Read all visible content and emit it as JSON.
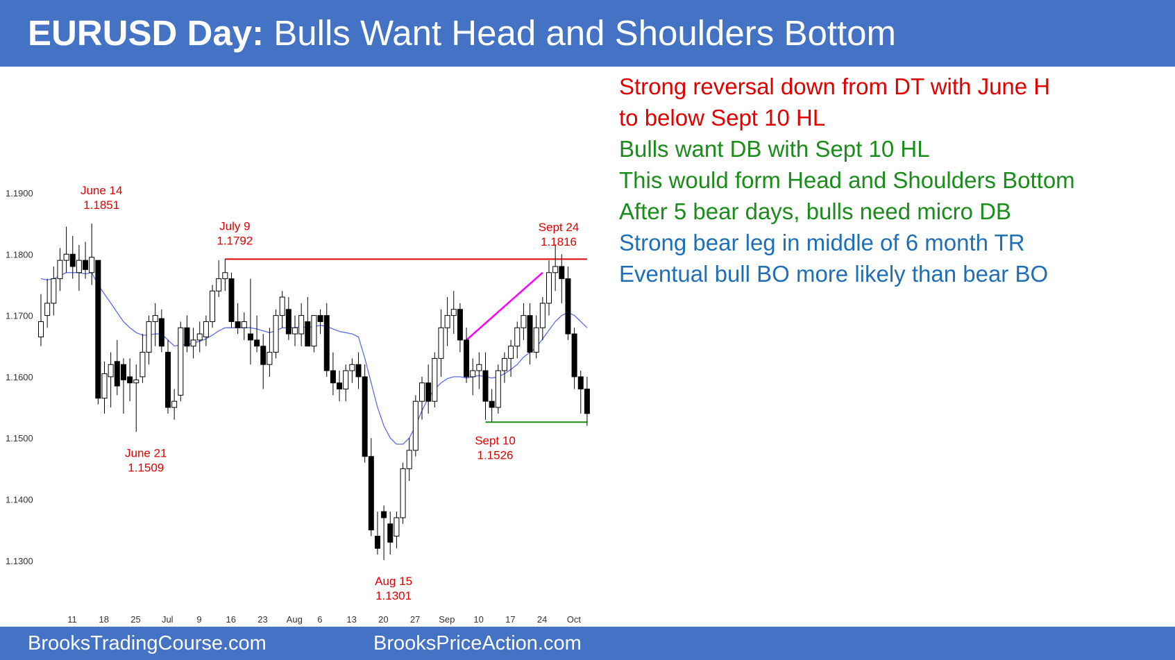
{
  "header": {
    "title_bold": "EURUSD Day:",
    "title_rest": " Bulls Want Head and Shoulders Bottom"
  },
  "footer": {
    "left_link": "BrooksTradingCourse.com",
    "right_link": "BrooksPriceAction.com"
  },
  "notes": [
    {
      "text": "Strong reversal down from DT with June H",
      "color": "#e00000"
    },
    {
      "text": "to below Sept 10 HL",
      "color": "#e00000"
    },
    {
      "text": "Bulls want DB with Sept 10 HL",
      "color": "#1a8c1a"
    },
    {
      "text": "This would form Head and Shoulders Bottom",
      "color": "#1a8c1a"
    },
    {
      "text": "After 5 bear days, bulls need micro DB",
      "color": "#1a8c1a"
    },
    {
      "text": "Strong bear leg in middle of 6 month TR",
      "color": "#1f6fb6"
    },
    {
      "text": "Eventual bull BO more likely than bear BO",
      "color": "#1f6fb6"
    }
  ],
  "chart_data": {
    "type": "candlestick",
    "title": "",
    "ylim": [
      1.125,
      1.197
    ],
    "y_ticks": [
      "1.1300",
      "1.1400",
      "1.1500",
      "1.1600",
      "1.1700",
      "1.1800",
      "1.1900"
    ],
    "x_ticks": [
      "11",
      "18",
      "25",
      "Jul",
      "9",
      "16",
      "23",
      "Aug",
      "6",
      "13",
      "20",
      "27",
      "Sep",
      "10",
      "17",
      "24",
      "Oct"
    ],
    "x_tick_index": [
      0,
      5,
      10,
      15,
      20,
      25,
      30,
      35,
      39,
      44,
      49,
      54,
      59,
      64,
      69,
      74,
      79
    ],
    "candles": [
      [
        1.1665,
        1.1735,
        1.165,
        1.169
      ],
      [
        1.17,
        1.176,
        1.168,
        1.172
      ],
      [
        1.172,
        1.178,
        1.17,
        1.176
      ],
      [
        1.176,
        1.181,
        1.174,
        1.179
      ],
      [
        1.179,
        1.1845,
        1.177,
        1.18
      ],
      [
        1.18,
        1.183,
        1.176,
        1.178
      ],
      [
        1.177,
        1.1815,
        1.174,
        1.179
      ],
      [
        1.179,
        1.182,
        1.176,
        1.1775
      ],
      [
        1.177,
        1.185,
        1.175,
        1.1795
      ],
      [
        1.179,
        1.179,
        1.1555,
        1.1565
      ],
      [
        1.1565,
        1.1625,
        1.154,
        1.1605
      ],
      [
        1.16,
        1.164,
        1.155,
        1.162
      ],
      [
        1.1625,
        1.166,
        1.157,
        1.1585
      ],
      [
        1.162,
        1.163,
        1.154,
        1.1595
      ],
      [
        1.16,
        1.163,
        1.156,
        1.159
      ],
      [
        1.159,
        1.162,
        1.151,
        1.1595
      ],
      [
        1.16,
        1.167,
        1.159,
        1.164
      ],
      [
        1.164,
        1.17,
        1.162,
        1.169
      ],
      [
        1.169,
        1.172,
        1.165,
        1.17
      ],
      [
        1.1695,
        1.171,
        1.164,
        1.165
      ],
      [
        1.164,
        1.166,
        1.154,
        1.155
      ],
      [
        1.155,
        1.158,
        1.153,
        1.156
      ],
      [
        1.157,
        1.169,
        1.156,
        1.168
      ],
      [
        1.168,
        1.17,
        1.164,
        1.165
      ],
      [
        1.165,
        1.168,
        1.163,
        1.166
      ],
      [
        1.166,
        1.169,
        1.164,
        1.167
      ],
      [
        1.1665,
        1.17,
        1.165,
        1.169
      ],
      [
        1.169,
        1.175,
        1.168,
        1.174
      ],
      [
        1.174,
        1.179,
        1.173,
        1.176
      ],
      [
        1.176,
        1.1792,
        1.174,
        1.177
      ],
      [
        1.176,
        1.177,
        1.168,
        1.169
      ],
      [
        1.169,
        1.172,
        1.167,
        1.168
      ],
      [
        1.168,
        1.1705,
        1.166,
        1.169
      ],
      [
        1.167,
        1.176,
        1.162,
        1.166
      ],
      [
        1.166,
        1.17,
        1.164,
        1.165
      ],
      [
        1.165,
        1.167,
        1.158,
        1.162
      ],
      [
        1.162,
        1.168,
        1.16,
        1.164
      ],
      [
        1.164,
        1.171,
        1.163,
        1.17
      ],
      [
        1.17,
        1.174,
        1.168,
        1.173
      ],
      [
        1.171,
        1.173,
        1.166,
        1.167
      ],
      [
        1.167,
        1.17,
        1.165,
        1.168
      ],
      [
        1.167,
        1.172,
        1.165,
        1.17
      ],
      [
        1.169,
        1.173,
        1.165,
        1.165
      ],
      [
        1.165,
        1.17,
        1.164,
        1.17
      ],
      [
        1.17,
        1.171,
        1.167,
        1.169
      ],
      [
        1.17,
        1.172,
        1.16,
        1.161
      ],
      [
        1.161,
        1.164,
        1.157,
        1.159
      ],
      [
        1.159,
        1.161,
        1.156,
        1.158
      ],
      [
        1.158,
        1.162,
        1.156,
        1.161
      ],
      [
        1.161,
        1.163,
        1.159,
        1.162
      ],
      [
        1.162,
        1.164,
        1.158,
        1.16
      ],
      [
        1.16,
        1.162,
        1.146,
        1.147
      ],
      [
        1.147,
        1.15,
        1.134,
        1.135
      ],
      [
        1.134,
        1.138,
        1.131,
        1.132
      ],
      [
        1.138,
        1.139,
        1.1301,
        1.137
      ],
      [
        1.136,
        1.138,
        1.131,
        1.133
      ],
      [
        1.134,
        1.138,
        1.132,
        1.137
      ],
      [
        1.137,
        1.146,
        1.136,
        1.145
      ],
      [
        1.145,
        1.15,
        1.143,
        1.148
      ],
      [
        1.148,
        1.157,
        1.147,
        1.156
      ],
      [
        1.156,
        1.16,
        1.153,
        1.159
      ],
      [
        1.159,
        1.162,
        1.154,
        1.156
      ],
      [
        1.156,
        1.164,
        1.155,
        1.163
      ],
      [
        1.163,
        1.171,
        1.16,
        1.168
      ],
      [
        1.168,
        1.173,
        1.165,
        1.17
      ],
      [
        1.17,
        1.174,
        1.167,
        1.171
      ],
      [
        1.171,
        1.172,
        1.164,
        1.166
      ],
      [
        1.166,
        1.168,
        1.159,
        1.16
      ],
      [
        1.16,
        1.163,
        1.157,
        1.161
      ],
      [
        1.161,
        1.164,
        1.158,
        1.162
      ],
      [
        1.161,
        1.164,
        1.153,
        1.156
      ],
      [
        1.156,
        1.158,
        1.1526,
        1.155
      ],
      [
        1.155,
        1.162,
        1.154,
        1.161
      ],
      [
        1.161,
        1.164,
        1.159,
        1.163
      ],
      [
        1.163,
        1.166,
        1.16,
        1.165
      ],
      [
        1.165,
        1.169,
        1.163,
        1.168
      ],
      [
        1.168,
        1.172,
        1.166,
        1.17
      ],
      [
        1.17,
        1.172,
        1.162,
        1.164
      ],
      [
        1.164,
        1.17,
        1.163,
        1.168
      ],
      [
        1.168,
        1.173,
        1.166,
        1.172
      ],
      [
        1.172,
        1.179,
        1.17,
        1.177
      ],
      [
        1.177,
        1.1816,
        1.174,
        1.178
      ],
      [
        1.178,
        1.18,
        1.172,
        1.176
      ],
      [
        1.176,
        1.178,
        1.166,
        1.167
      ],
      [
        1.167,
        1.168,
        1.158,
        1.16
      ],
      [
        1.16,
        1.161,
        1.154,
        1.158
      ],
      [
        1.158,
        1.16,
        1.152,
        1.154
      ]
    ],
    "ema": [
      1.176,
      1.1758,
      1.176,
      1.1765,
      1.177,
      1.177,
      1.177,
      1.1768,
      1.177,
      1.175,
      1.1735,
      1.172,
      1.1705,
      1.169,
      1.168,
      1.1672,
      1.1668,
      1.1668,
      1.167,
      1.167,
      1.166,
      1.165,
      1.1652,
      1.1652,
      1.1655,
      1.1658,
      1.1662,
      1.1668,
      1.1675,
      1.168,
      1.168,
      1.168,
      1.168,
      1.168,
      1.1678,
      1.1675,
      1.1672,
      1.1675,
      1.168,
      1.168,
      1.168,
      1.1682,
      1.168,
      1.1682,
      1.1684,
      1.1682,
      1.1678,
      1.1674,
      1.1672,
      1.167,
      1.1665,
      1.163,
      1.159,
      1.155,
      1.152,
      1.15,
      1.149,
      1.149,
      1.15,
      1.152,
      1.1545,
      1.1565,
      1.158,
      1.159,
      1.1597,
      1.16,
      1.16,
      1.1598,
      1.16,
      1.1602,
      1.16,
      1.1598,
      1.16,
      1.1605,
      1.1612,
      1.162,
      1.1632,
      1.164,
      1.1648,
      1.1662,
      1.1676,
      1.169,
      1.17,
      1.1705,
      1.17,
      1.169,
      1.168
    ],
    "lines": [
      {
        "name": "resistance",
        "color": "#e00000",
        "y": 1.1792,
        "x_from": 29,
        "x_to": 86
      },
      {
        "name": "support",
        "color": "#1a8c1a",
        "y": 1.1526,
        "x_from": 70,
        "x_to": 86
      },
      {
        "name": "trend",
        "color": "#ff00ff",
        "points": [
          [
            67,
            1.166
          ],
          [
            79,
            1.177
          ]
        ]
      }
    ],
    "annotations": [
      {
        "label": "June 14",
        "value": "1.1851",
        "color": "#e00000",
        "i": 8,
        "pos": "above"
      },
      {
        "label": "July 9",
        "value": "1.1792",
        "color": "#e00000",
        "i": 29,
        "pos": "above"
      },
      {
        "label": "Sept 24",
        "value": "1.1816",
        "color": "#e00000",
        "i": 80,
        "pos": "above"
      },
      {
        "label": "June 21",
        "value": "1.1509",
        "color": "#e00000",
        "i": 15,
        "pos": "below"
      },
      {
        "label": "Aug 15",
        "value": "1.1301",
        "color": "#e00000",
        "i": 54,
        "pos": "below"
      },
      {
        "label": "Sept 10",
        "value": "1.1526",
        "color": "#e00000",
        "i": 70,
        "pos": "below"
      }
    ]
  }
}
